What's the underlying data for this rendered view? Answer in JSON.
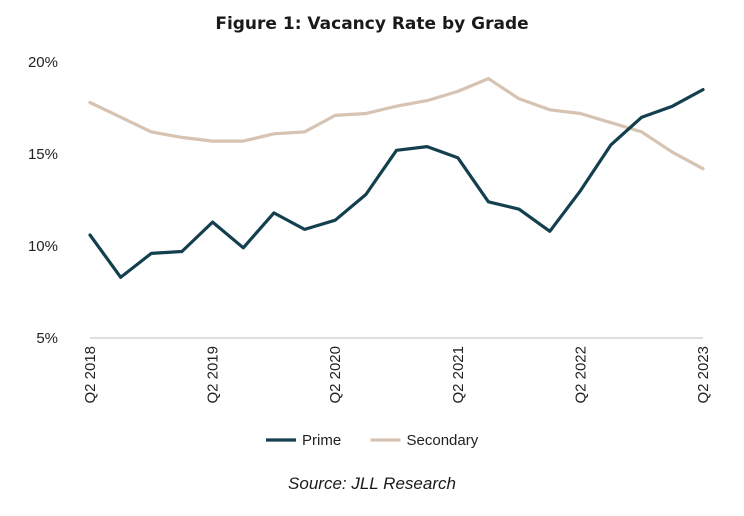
{
  "chart_data": {
    "type": "line",
    "title": "Figure 1: Vacancy Rate by Grade",
    "xlabel": "",
    "ylabel": "",
    "x": [
      "Q2 2018",
      "Q3 2018",
      "Q4 2018",
      "Q1 2019",
      "Q2 2019",
      "Q3 2019",
      "Q4 2019",
      "Q1 2020",
      "Q2 2020",
      "Q3 2020",
      "Q4 2020",
      "Q1 2021",
      "Q2 2021",
      "Q3 2021",
      "Q4 2021",
      "Q1 2022",
      "Q2 2022",
      "Q3 2022",
      "Q4 2022",
      "Q1 2023",
      "Q2 2023"
    ],
    "x_tick_labels": [
      "Q2 2018",
      "Q2 2019",
      "Q2 2020",
      "Q2 2021",
      "Q2 2022",
      "Q2 2023"
    ],
    "ylim": [
      5,
      20
    ],
    "y_ticks": [
      5,
      10,
      15,
      20
    ],
    "y_tick_format": "percent",
    "grid": false,
    "legend_position": "bottom",
    "series": [
      {
        "name": "Prime",
        "color": "#143f4f",
        "values": [
          10.6,
          8.3,
          9.6,
          9.7,
          11.3,
          9.9,
          11.8,
          10.9,
          11.4,
          12.8,
          15.2,
          15.4,
          14.8,
          12.4,
          12.0,
          10.8,
          13.0,
          15.5,
          17.0,
          17.6,
          18.5
        ]
      },
      {
        "name": "Secondary",
        "color": "#d6c3b2",
        "values": [
          17.8,
          17.0,
          16.2,
          15.9,
          15.7,
          15.7,
          16.1,
          16.2,
          17.1,
          17.2,
          17.6,
          17.9,
          18.4,
          19.1,
          18.0,
          17.4,
          17.2,
          16.7,
          16.2,
          15.1,
          14.2
        ]
      }
    ]
  },
  "source_note": "Source: JLL Research"
}
